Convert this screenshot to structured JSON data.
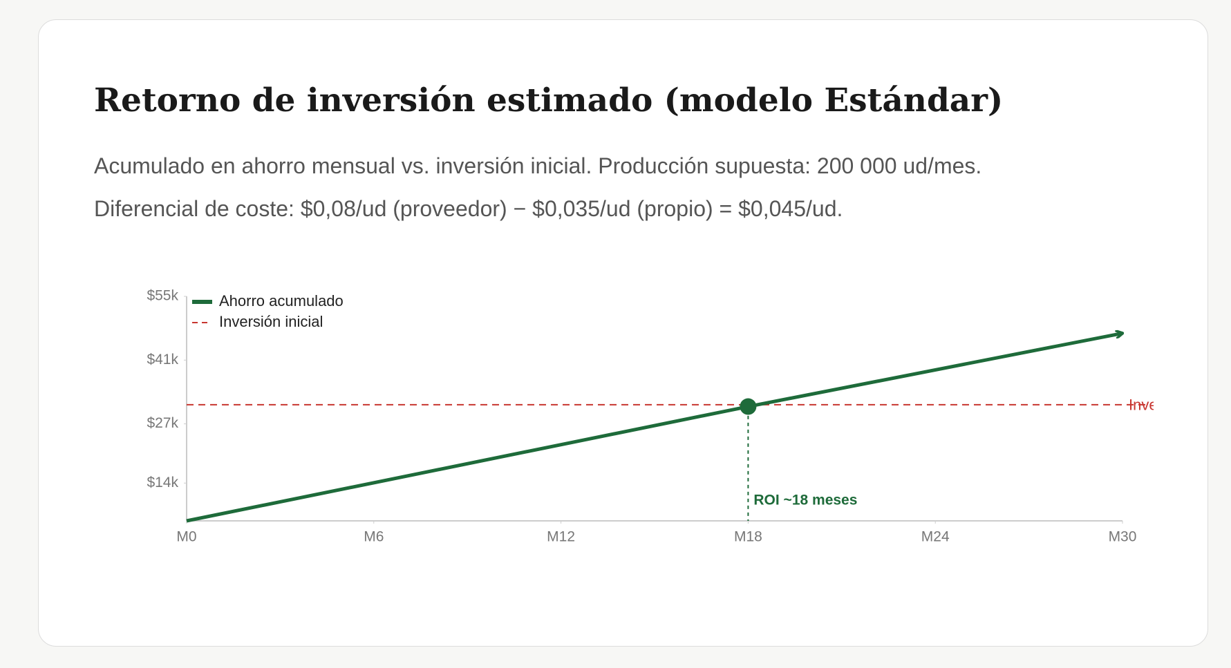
{
  "header": {
    "title": "Retorno de inversión estimado (modelo Estándar)",
    "subtitle_lines": [
      "Acumulado en ahorro mensual vs. inversión inicial. Producción supuesta: 200 000 ud/mes.",
      "Diferencial de coste: $0,08/ud (proveedor) − $0,035/ud (propio) = $0,045/ud."
    ]
  },
  "chart_data": {
    "type": "line",
    "x": [
      0,
      18,
      30
    ],
    "series": [
      {
        "name": "Ahorro acumulado",
        "color": "#1e6b3a",
        "values": [
          5700,
          30800,
          46900
        ]
      }
    ],
    "reference_line": {
      "name": "Inversión inicial",
      "value": 31200,
      "color": "#c8352f"
    },
    "annotation": {
      "text": "ROI ~18 meses",
      "x": 18
    },
    "xlim": [
      0,
      30
    ],
    "xticks": [
      {
        "value": 0,
        "label": "M0"
      },
      {
        "value": 6,
        "label": "M6"
      },
      {
        "value": 12,
        "label": "M12"
      },
      {
        "value": 18,
        "label": "M18"
      },
      {
        "value": 24,
        "label": "M24"
      },
      {
        "value": 30,
        "label": "M30"
      }
    ],
    "ylim": [
      5700,
      55000
    ],
    "yticks": [
      {
        "value": 14000,
        "label": "$14k"
      },
      {
        "value": 27000,
        "label": "$27k"
      },
      {
        "value": 41000,
        "label": "$41k"
      },
      {
        "value": 55000,
        "label": "$55k"
      }
    ],
    "legend": "top-left"
  }
}
